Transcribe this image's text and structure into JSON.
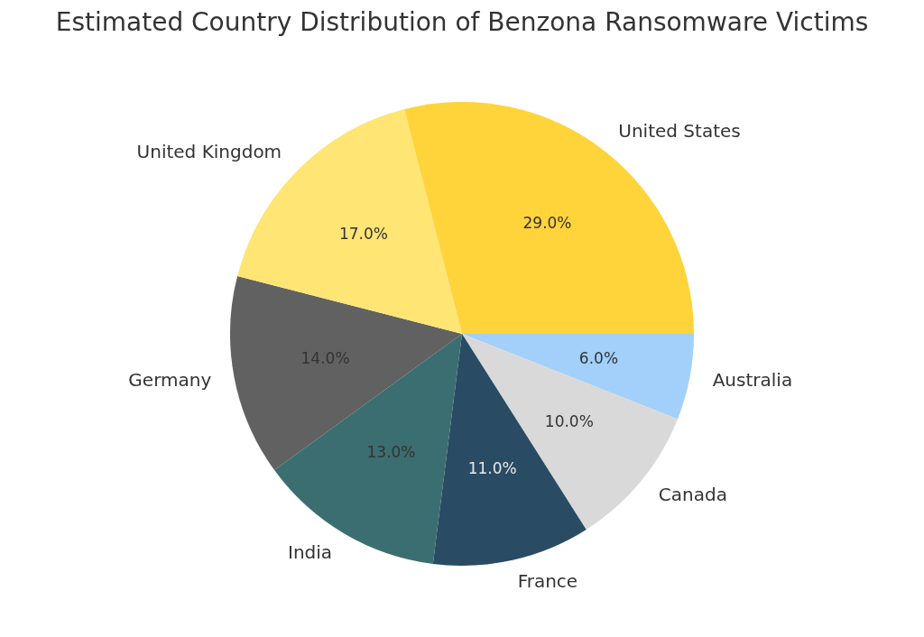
{
  "chart_data": {
    "type": "pie",
    "title": "Estimated Country Distribution of Benzona Ransomware Victims",
    "categories": [
      "Australia",
      "Canada",
      "France",
      "India",
      "Germany",
      "United Kingdom",
      "United States"
    ],
    "values": [
      6,
      10,
      11,
      13,
      14,
      17,
      29
    ],
    "colors": [
      "#a2d0fb",
      "#d9d9d9",
      "#294b63",
      "#3b6e70",
      "#616161",
      "#ffe574",
      "#ffd43b"
    ],
    "value_labels": [
      "6.0%",
      "10.0%",
      "11.0%",
      "13.0%",
      "14.0%",
      "17.0%",
      "29.0%"
    ],
    "legend": false
  }
}
